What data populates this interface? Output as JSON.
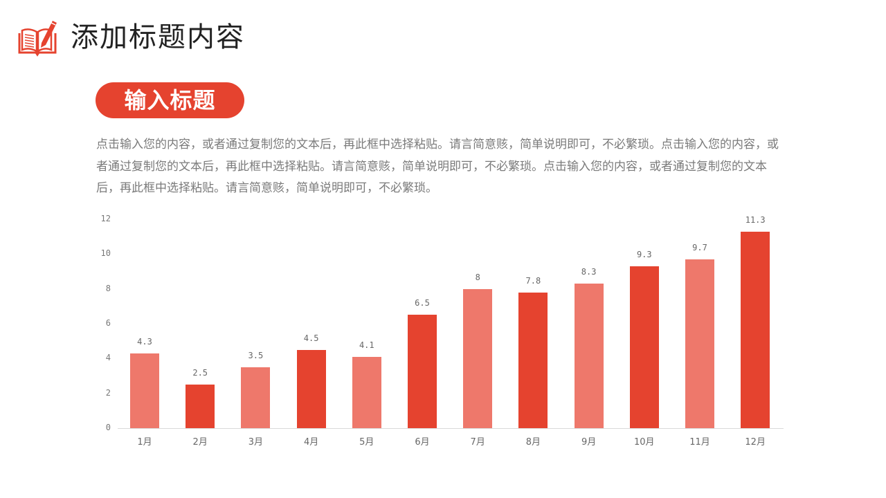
{
  "header": {
    "title": "添加标题内容",
    "logo_icon": "book-pencil-icon"
  },
  "section": {
    "pill_title": "输入标题",
    "description": "点击输入您的内容，或者通过复制您的文本后，再此框中选择粘贴。请言简意赅，简单说明即可，不必繁琐。点击输入您的内容，或者通过复制您的文本后，再此框中选择粘贴。请言简意赅，简单说明即可，不必繁琐。点击输入您的内容，或者通过复制您的文本后，再此框中选择粘贴。请言简意赅，简单说明即可，不必繁琐。"
  },
  "colors": {
    "accent": "#e5432f",
    "light": "#ee786b",
    "text": "#7a7a7a"
  },
  "chart_data": {
    "type": "bar",
    "title": "",
    "xlabel": "",
    "ylabel": "",
    "categories": [
      "1月",
      "2月",
      "3月",
      "4月",
      "5月",
      "6月",
      "7月",
      "8月",
      "9月",
      "10月",
      "11月",
      "12月"
    ],
    "values": [
      4.3,
      2.5,
      3.5,
      4.5,
      4.1,
      6.5,
      8,
      7.8,
      8.3,
      9.3,
      9.7,
      11.3
    ],
    "value_labels": [
      "4.3",
      "2.5",
      "3.5",
      "4.5",
      "4.1",
      "6.5",
      "8",
      "7.8",
      "8.3",
      "9.3",
      "9.7",
      "11.3"
    ],
    "bar_colors": [
      "#ee786b",
      "#e5432f",
      "#ee786b",
      "#e5432f",
      "#ee786b",
      "#e5432f",
      "#ee786b",
      "#e5432f",
      "#ee786b",
      "#e5432f",
      "#ee786b",
      "#e5432f"
    ],
    "yticks": [
      "0",
      "2",
      "4",
      "6",
      "8",
      "10",
      "12"
    ],
    "ylim": [
      0,
      12
    ],
    "grid": false,
    "legend": "none"
  }
}
